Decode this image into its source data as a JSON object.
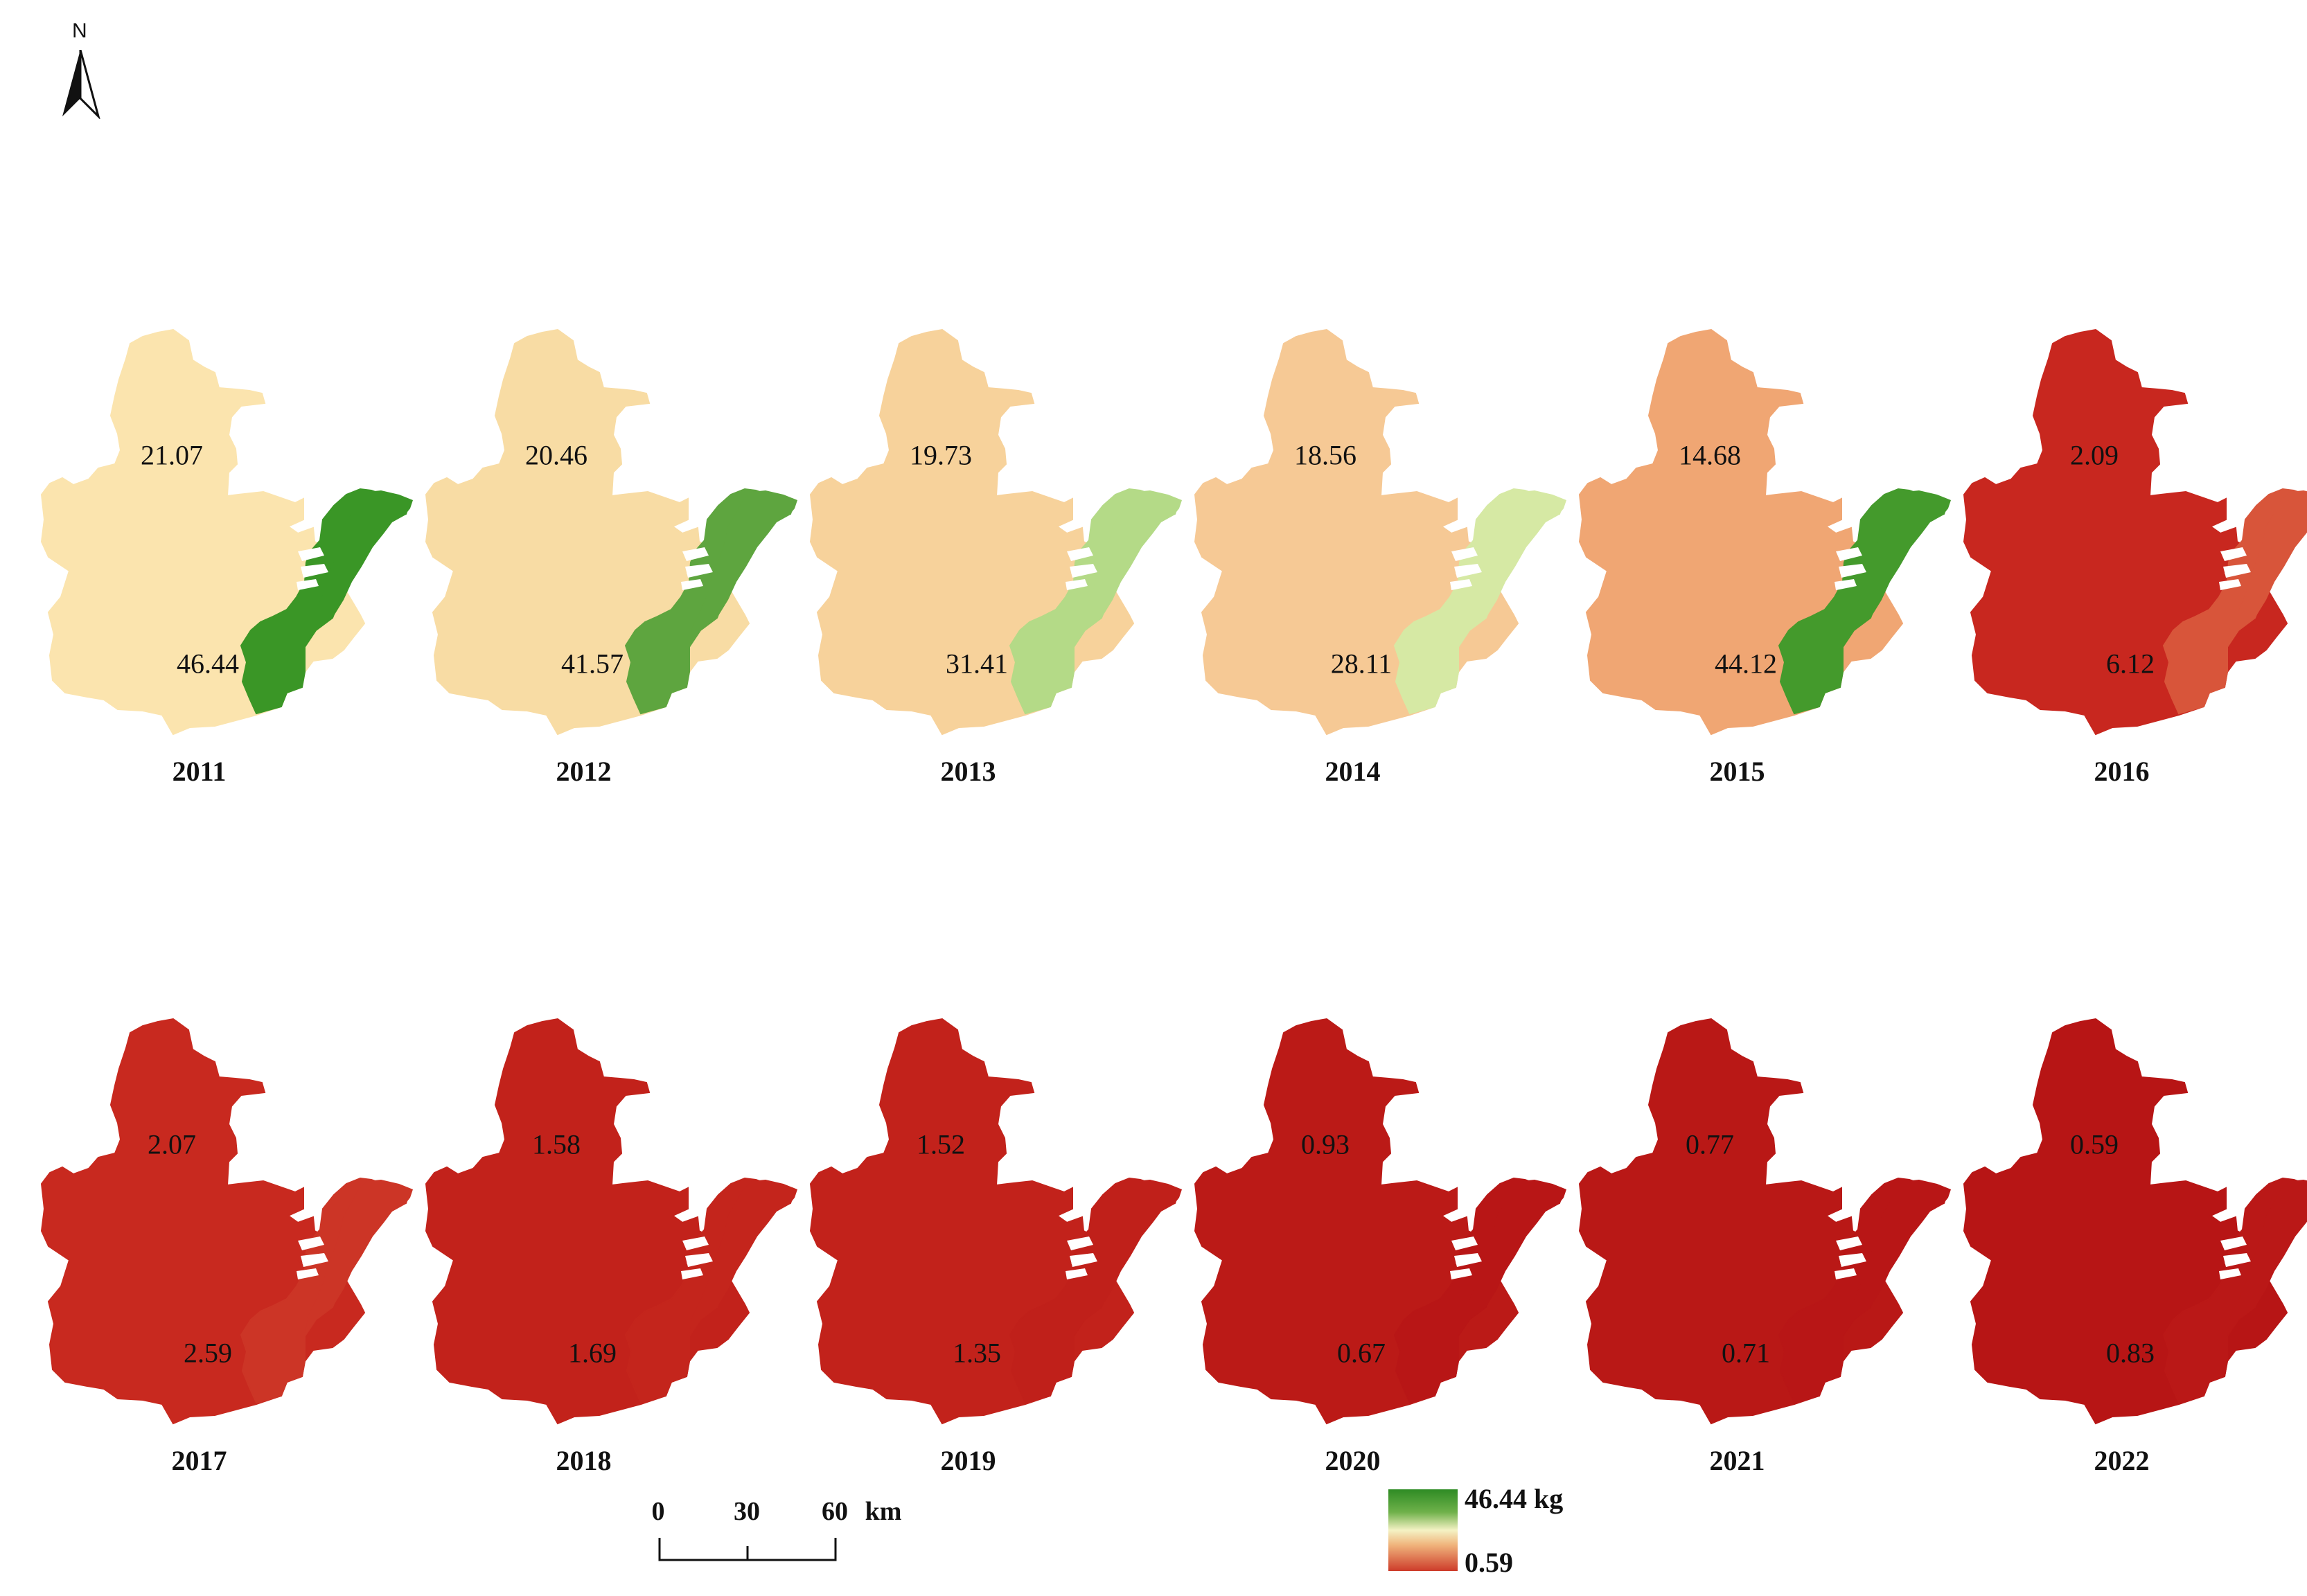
{
  "north_arrow": {
    "label": "N"
  },
  "legend": {
    "max_label": "46.44 kg",
    "min_label": "0.59",
    "colors": [
      "#2e8b24",
      "#6fb14a",
      "#f4f2c4",
      "#f0b47c",
      "#cd3b2a"
    ]
  },
  "scale_bar": {
    "ticks": [
      "0",
      "30",
      "60"
    ],
    "unit": "km"
  },
  "maps": [
    {
      "year": "2011",
      "inland_value": "21.07",
      "coastal_value": "46.44",
      "inland_color": "#fbe4ae",
      "coastal_color": "#3a9626"
    },
    {
      "year": "2012",
      "inland_value": "20.46",
      "coastal_value": "41.57",
      "inland_color": "#f8dca4",
      "coastal_color": "#5ea53f"
    },
    {
      "year": "2013",
      "inland_value": "19.73",
      "coastal_value": "31.41",
      "inland_color": "#f7d29b",
      "coastal_color": "#b4da87"
    },
    {
      "year": "2014",
      "inland_value": "18.56",
      "coastal_value": "28.11",
      "inland_color": "#f6c995",
      "coastal_color": "#d6e9a4"
    },
    {
      "year": "2015",
      "inland_value": "14.68",
      "coastal_value": "44.12",
      "inland_color": "#f0a673",
      "coastal_color": "#449a2c"
    },
    {
      "year": "2016",
      "inland_value": "2.09",
      "coastal_value": "6.12",
      "inland_color": "#c8271f",
      "coastal_color": "#d8553a"
    },
    {
      "year": "2017",
      "inland_value": "2.07",
      "coastal_value": "2.59",
      "inland_color": "#c8291f",
      "coastal_color": "#cc3526"
    },
    {
      "year": "2018",
      "inland_value": "1.58",
      "coastal_value": "1.69",
      "inland_color": "#c2221b",
      "coastal_color": "#c4251c"
    },
    {
      "year": "2019",
      "inland_value": "1.52",
      "coastal_value": "1.35",
      "inland_color": "#c2221b",
      "coastal_color": "#c0201a"
    },
    {
      "year": "2020",
      "inland_value": "0.93",
      "coastal_value": "0.67",
      "inland_color": "#bb1a17",
      "coastal_color": "#b81616"
    },
    {
      "year": "2021",
      "inland_value": "0.77",
      "coastal_value": "0.71",
      "inland_color": "#b91816",
      "coastal_color": "#b81616"
    },
    {
      "year": "2022",
      "inland_value": "0.59",
      "coastal_value": "0.83",
      "inland_color": "#b71515",
      "coastal_color": "#ba1817"
    }
  ]
}
